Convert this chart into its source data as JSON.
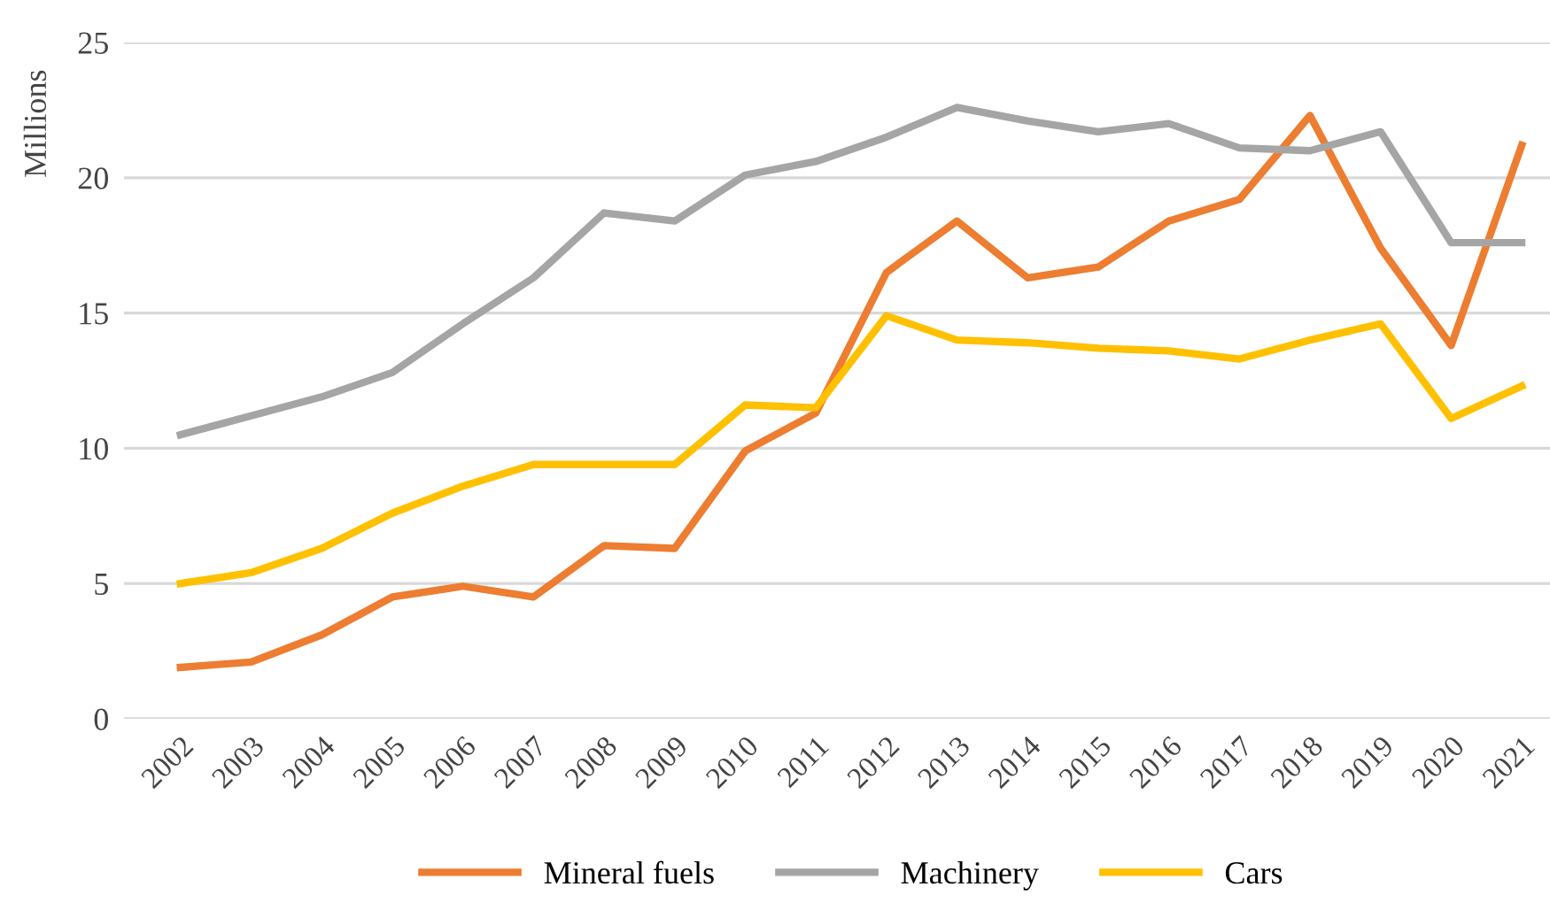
{
  "chart_data": {
    "type": "line",
    "ylabel": "Millions",
    "categories": [
      "2002",
      "2003",
      "2004",
      "2005",
      "2006",
      "2007",
      "2008",
      "2009",
      "2010",
      "2011",
      "2012",
      "2013",
      "2014",
      "2015",
      "2016",
      "2017",
      "2018",
      "2019",
      "2020",
      "2021"
    ],
    "series": [
      {
        "name": "Mineral fuels",
        "color": "#ed7d31",
        "values": [
          1.9,
          2.1,
          3.1,
          4.5,
          4.9,
          4.5,
          6.4,
          6.3,
          9.9,
          11.3,
          16.5,
          18.4,
          16.3,
          16.7,
          18.4,
          19.2,
          22.3,
          17.4,
          13.8,
          21.2
        ]
      },
      {
        "name": "Machinery",
        "color": "#a5a5a5",
        "values": [
          10.5,
          11.2,
          11.9,
          12.8,
          14.6,
          16.3,
          18.7,
          18.4,
          20.1,
          20.6,
          21.5,
          22.6,
          22.1,
          21.7,
          22.0,
          21.1,
          21.0,
          21.7,
          17.6,
          17.6
        ]
      },
      {
        "name": "Cars",
        "color": "#ffc000",
        "values": [
          5.0,
          5.4,
          6.3,
          7.6,
          8.6,
          9.4,
          9.4,
          9.4,
          11.6,
          11.5,
          14.9,
          14.0,
          13.9,
          13.7,
          13.6,
          13.3,
          14.0,
          14.6,
          11.1,
          12.3
        ]
      }
    ],
    "ylim": [
      0,
      25
    ],
    "yticks": [
      0,
      5,
      10,
      15,
      20,
      25
    ],
    "grid": "y",
    "legend": "bottom",
    "marker": "none",
    "line_style": "solid"
  }
}
